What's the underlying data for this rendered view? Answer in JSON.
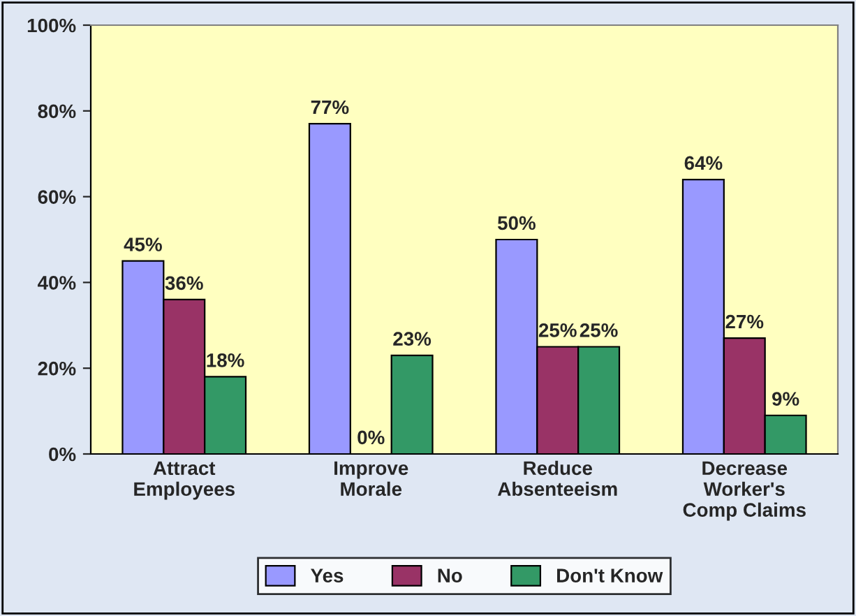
{
  "chart_data": {
    "type": "bar",
    "categories": [
      "Attract\nEmployees",
      "Improve\nMorale",
      "Reduce\nAbsenteeism",
      "Decrease\nWorker's\nComp Claims"
    ],
    "series": [
      {
        "name": "Yes",
        "color": "#9999ff",
        "values": [
          45,
          77,
          50,
          64
        ],
        "value_labels": [
          "45%",
          "77%",
          "50%",
          "64%"
        ]
      },
      {
        "name": "No",
        "color": "#993366",
        "values": [
          36,
          0,
          25,
          27
        ],
        "value_labels": [
          "36%",
          "0%",
          "25%",
          "27%"
        ]
      },
      {
        "name": "Don't Know",
        "color": "#339966",
        "values": [
          18,
          23,
          25,
          9
        ],
        "value_labels": [
          "18%",
          "23%",
          "25%",
          "9%"
        ]
      }
    ],
    "ylim": [
      0,
      100
    ],
    "yticks": [
      {
        "value": 0,
        "label": "0%"
      },
      {
        "value": 20,
        "label": "20%"
      },
      {
        "value": 40,
        "label": "40%"
      },
      {
        "value": 60,
        "label": "60%"
      },
      {
        "value": 80,
        "label": "80%"
      },
      {
        "value": 100,
        "label": "100%"
      }
    ],
    "grid": false,
    "legend": "bottom"
  }
}
